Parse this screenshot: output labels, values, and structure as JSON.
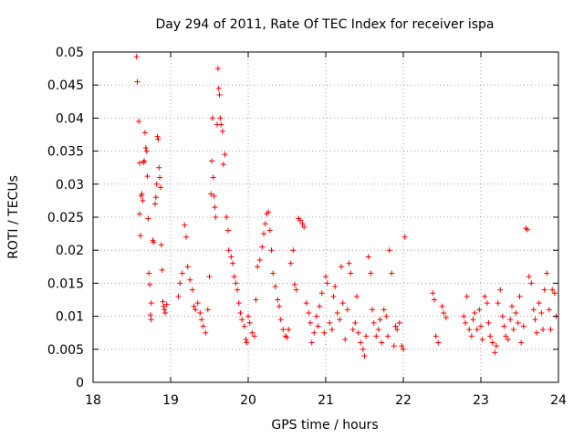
{
  "chart_data": {
    "type": "scatter",
    "title": "Day 294 of 2011, Rate Of TEC Index for receiver ispa",
    "xlabel": "GPS time / hours",
    "ylabel": "ROTI / TECUs",
    "xlim": [
      18,
      24
    ],
    "ylim": [
      0,
      0.05
    ],
    "xticks": [
      "18",
      "19",
      "20",
      "21",
      "22",
      "23",
      "24"
    ],
    "yticks": [
      "0",
      "0.005",
      "0.01",
      "0.015",
      "0.02",
      "0.025",
      "0.03",
      "0.035",
      "0.04",
      "0.045",
      "0.05"
    ],
    "grid": true,
    "marker": "plus",
    "marker_color": "#ff0000",
    "series": [
      {
        "name": "ROTI",
        "points": [
          [
            18.56,
            0.0493
          ],
          [
            18.57,
            0.0455
          ],
          [
            18.59,
            0.0395
          ],
          [
            18.6,
            0.0332
          ],
          [
            18.6,
            0.0255
          ],
          [
            18.61,
            0.0222
          ],
          [
            18.62,
            0.0282
          ],
          [
            18.63,
            0.0285
          ],
          [
            18.64,
            0.0275
          ],
          [
            18.65,
            0.0333
          ],
          [
            18.66,
            0.0335
          ],
          [
            18.67,
            0.0378
          ],
          [
            18.68,
            0.0355
          ],
          [
            18.69,
            0.035
          ],
          [
            18.7,
            0.0312
          ],
          [
            18.71,
            0.0248
          ],
          [
            18.72,
            0.0165
          ],
          [
            18.73,
            0.0148
          ],
          [
            18.74,
            0.0102
          ],
          [
            18.75,
            0.0095
          ],
          [
            18.75,
            0.012
          ],
          [
            18.77,
            0.0215
          ],
          [
            18.78,
            0.0212
          ],
          [
            18.8,
            0.027
          ],
          [
            18.81,
            0.028
          ],
          [
            18.82,
            0.03
          ],
          [
            18.83,
            0.0372
          ],
          [
            18.84,
            0.0368
          ],
          [
            18.85,
            0.0325
          ],
          [
            18.86,
            0.031
          ],
          [
            18.87,
            0.0295
          ],
          [
            18.88,
            0.0208
          ],
          [
            18.89,
            0.017
          ],
          [
            18.9,
            0.0122
          ],
          [
            18.91,
            0.0115
          ],
          [
            18.92,
            0.011
          ],
          [
            18.93,
            0.0105
          ],
          [
            18.95,
            0.0118
          ],
          [
            19.1,
            0.013
          ],
          [
            19.12,
            0.015
          ],
          [
            19.15,
            0.0165
          ],
          [
            19.18,
            0.0238
          ],
          [
            19.2,
            0.022
          ],
          [
            19.22,
            0.0175
          ],
          [
            19.25,
            0.0155
          ],
          [
            19.28,
            0.014
          ],
          [
            19.3,
            0.0115
          ],
          [
            19.32,
            0.011
          ],
          [
            19.35,
            0.012
          ],
          [
            19.38,
            0.0105
          ],
          [
            19.4,
            0.0095
          ],
          [
            19.42,
            0.0085
          ],
          [
            19.45,
            0.0075
          ],
          [
            19.48,
            0.011
          ],
          [
            19.5,
            0.016
          ],
          [
            19.52,
            0.0285
          ],
          [
            19.53,
            0.0335
          ],
          [
            19.54,
            0.04
          ],
          [
            19.55,
            0.031
          ],
          [
            19.56,
            0.0282
          ],
          [
            19.57,
            0.0265
          ],
          [
            19.58,
            0.025
          ],
          [
            19.6,
            0.039
          ],
          [
            19.61,
            0.0475
          ],
          [
            19.62,
            0.0445
          ],
          [
            19.63,
            0.0435
          ],
          [
            19.64,
            0.04
          ],
          [
            19.65,
            0.039
          ],
          [
            19.67,
            0.038
          ],
          [
            19.68,
            0.033
          ],
          [
            19.7,
            0.0345
          ],
          [
            19.72,
            0.025
          ],
          [
            19.74,
            0.023
          ],
          [
            19.75,
            0.02
          ],
          [
            19.78,
            0.019
          ],
          [
            19.8,
            0.018
          ],
          [
            19.82,
            0.016
          ],
          [
            19.84,
            0.015
          ],
          [
            19.86,
            0.014
          ],
          [
            19.88,
            0.012
          ],
          [
            19.9,
            0.0105
          ],
          [
            19.92,
            0.0095
          ],
          [
            19.95,
            0.0085
          ],
          [
            19.97,
            0.0065
          ],
          [
            19.98,
            0.006
          ],
          [
            20.0,
            0.01
          ],
          [
            20.02,
            0.009
          ],
          [
            20.05,
            0.0075
          ],
          [
            20.08,
            0.007
          ],
          [
            20.1,
            0.0125
          ],
          [
            20.12,
            0.0175
          ],
          [
            20.15,
            0.0185
          ],
          [
            20.18,
            0.0205
          ],
          [
            20.2,
            0.0225
          ],
          [
            20.22,
            0.024
          ],
          [
            20.24,
            0.0255
          ],
          [
            20.26,
            0.0258
          ],
          [
            20.28,
            0.023
          ],
          [
            20.3,
            0.02
          ],
          [
            20.32,
            0.0165
          ],
          [
            20.35,
            0.0145
          ],
          [
            20.38,
            0.0125
          ],
          [
            20.4,
            0.0115
          ],
          [
            20.42,
            0.0095
          ],
          [
            20.45,
            0.008
          ],
          [
            20.48,
            0.007
          ],
          [
            20.5,
            0.0068
          ],
          [
            20.52,
            0.008
          ],
          [
            20.55,
            0.018
          ],
          [
            20.58,
            0.02
          ],
          [
            20.6,
            0.0148
          ],
          [
            20.62,
            0.014
          ],
          [
            20.65,
            0.0248
          ],
          [
            20.67,
            0.0245
          ],
          [
            20.7,
            0.024
          ],
          [
            20.72,
            0.0235
          ],
          [
            20.75,
            0.012
          ],
          [
            20.78,
            0.0105
          ],
          [
            20.8,
            0.009
          ],
          [
            20.82,
            0.006
          ],
          [
            20.85,
            0.0075
          ],
          [
            20.88,
            0.01
          ],
          [
            20.9,
            0.0085
          ],
          [
            20.92,
            0.0115
          ],
          [
            20.95,
            0.0135
          ],
          [
            20.98,
            0.0075
          ],
          [
            21.0,
            0.016
          ],
          [
            21.02,
            0.015
          ],
          [
            21.05,
            0.009
          ],
          [
            21.08,
            0.008
          ],
          [
            21.1,
            0.013
          ],
          [
            21.12,
            0.0145
          ],
          [
            21.15,
            0.0105
          ],
          [
            21.18,
            0.0095
          ],
          [
            21.2,
            0.0175
          ],
          [
            21.22,
            0.012
          ],
          [
            21.25,
            0.0065
          ],
          [
            21.28,
            0.011
          ],
          [
            21.3,
            0.018
          ],
          [
            21.32,
            0.0165
          ],
          [
            21.35,
            0.008
          ],
          [
            21.38,
            0.009
          ],
          [
            21.4,
            0.013
          ],
          [
            21.42,
            0.0075
          ],
          [
            21.45,
            0.006
          ],
          [
            21.48,
            0.005
          ],
          [
            21.5,
            0.004
          ],
          [
            21.52,
            0.007
          ],
          [
            21.55,
            0.019
          ],
          [
            21.58,
            0.0165
          ],
          [
            21.6,
            0.011
          ],
          [
            21.62,
            0.009
          ],
          [
            21.65,
            0.007
          ],
          [
            21.68,
            0.008
          ],
          [
            21.7,
            0.0095
          ],
          [
            21.72,
            0.006
          ],
          [
            21.75,
            0.011
          ],
          [
            21.78,
            0.01
          ],
          [
            21.8,
            0.007
          ],
          [
            21.82,
            0.02
          ],
          [
            21.85,
            0.0165
          ],
          [
            21.88,
            0.0055
          ],
          [
            21.9,
            0.0085
          ],
          [
            21.92,
            0.008
          ],
          [
            21.95,
            0.009
          ],
          [
            21.98,
            0.0055
          ],
          [
            22.0,
            0.005
          ],
          [
            22.02,
            0.022
          ],
          [
            22.38,
            0.0135
          ],
          [
            22.4,
            0.0125
          ],
          [
            22.42,
            0.007
          ],
          [
            22.45,
            0.006
          ],
          [
            22.5,
            0.0115
          ],
          [
            22.52,
            0.0105
          ],
          [
            22.55,
            0.0098
          ],
          [
            22.78,
            0.01
          ],
          [
            22.8,
            0.009
          ],
          [
            22.82,
            0.013
          ],
          [
            22.85,
            0.008
          ],
          [
            22.88,
            0.007
          ],
          [
            22.9,
            0.0095
          ],
          [
            22.92,
            0.0105
          ],
          [
            22.95,
            0.008
          ],
          [
            22.98,
            0.011
          ],
          [
            23.0,
            0.0085
          ],
          [
            23.02,
            0.0065
          ],
          [
            23.05,
            0.013
          ],
          [
            23.08,
            0.012
          ],
          [
            23.1,
            0.009
          ],
          [
            23.12,
            0.007
          ],
          [
            23.15,
            0.006
          ],
          [
            23.18,
            0.0045
          ],
          [
            23.2,
            0.0055
          ],
          [
            23.22,
            0.012
          ],
          [
            23.25,
            0.014
          ],
          [
            23.28,
            0.01
          ],
          [
            23.3,
            0.0085
          ],
          [
            23.32,
            0.007
          ],
          [
            23.35,
            0.0065
          ],
          [
            23.38,
            0.0095
          ],
          [
            23.4,
            0.0115
          ],
          [
            23.42,
            0.008
          ],
          [
            23.45,
            0.0105
          ],
          [
            23.48,
            0.009
          ],
          [
            23.5,
            0.013
          ],
          [
            23.52,
            0.006
          ],
          [
            23.55,
            0.0085
          ],
          [
            23.58,
            0.0233
          ],
          [
            23.6,
            0.0231
          ],
          [
            23.62,
            0.016
          ],
          [
            23.65,
            0.015
          ],
          [
            23.68,
            0.011
          ],
          [
            23.7,
            0.0095
          ],
          [
            23.72,
            0.0075
          ],
          [
            23.75,
            0.012
          ],
          [
            23.78,
            0.0105
          ],
          [
            23.8,
            0.008
          ],
          [
            23.82,
            0.014
          ],
          [
            23.85,
            0.0165
          ],
          [
            23.88,
            0.011
          ],
          [
            23.9,
            0.008
          ],
          [
            23.92,
            0.014
          ],
          [
            23.95,
            0.0135
          ],
          [
            23.97,
            0.01
          ]
        ]
      }
    ]
  }
}
